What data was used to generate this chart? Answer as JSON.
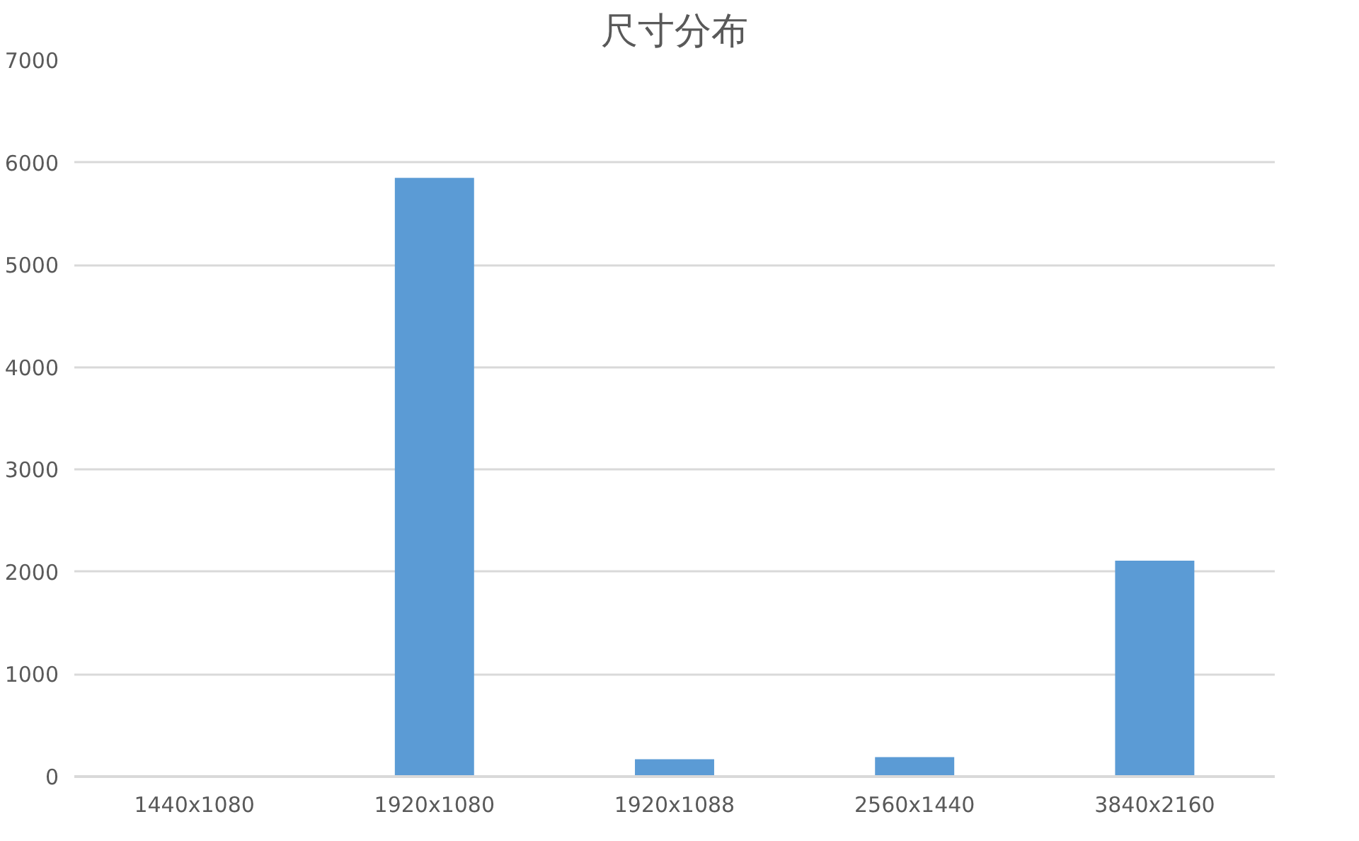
{
  "chart_data": {
    "type": "bar",
    "title": "尺寸分布",
    "categories": [
      "1440x1080",
      "1920x1080",
      "1920x1088",
      "2560x1440",
      "3840x2160"
    ],
    "values": [
      0,
      5850,
      170,
      190,
      2110
    ],
    "color": "#5b9bd5",
    "ylim": [
      0,
      7000
    ],
    "yticks": [
      0,
      1000,
      2000,
      3000,
      4000,
      5000,
      6000,
      7000
    ],
    "grid": "y"
  }
}
